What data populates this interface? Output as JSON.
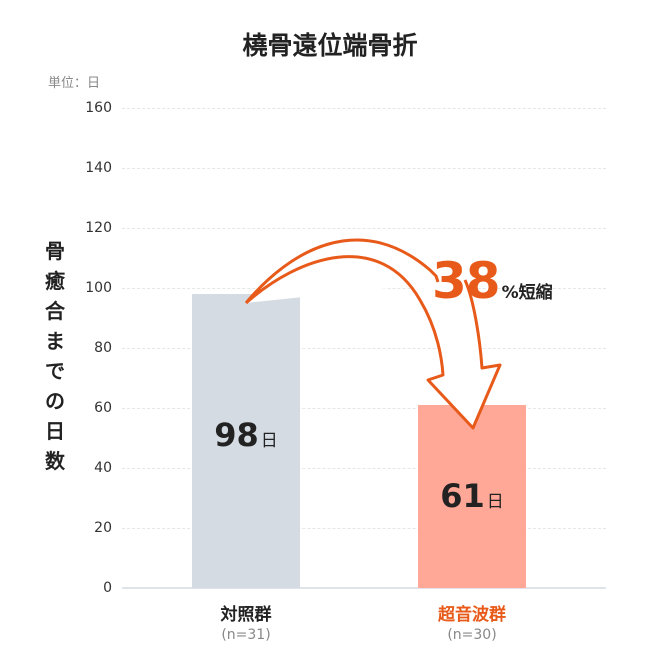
{
  "chart_data": {
    "type": "bar",
    "title": "橈骨遠位端骨折",
    "unit_label": "単位：日",
    "ylabel": "骨癒合までの日数",
    "xlabel": "",
    "ylim": [
      0,
      160
    ],
    "yticks": [
      "0",
      "20",
      "40",
      "60",
      "80",
      "100",
      "120",
      "140",
      "160"
    ],
    "grid": true,
    "categories": [
      "対照群",
      "超音波群"
    ],
    "category_notes": [
      "(n=31)",
      "(n=30)"
    ],
    "values": [
      98,
      61
    ],
    "value_unit": "日",
    "colors": [
      "#d4dbe3",
      "#ffa898"
    ],
    "category_label_colors": [
      "#222222",
      "#e85a1a"
    ],
    "annotation": {
      "value": "38",
      "suffix": "%短縮",
      "color": "#e85a1a"
    }
  }
}
